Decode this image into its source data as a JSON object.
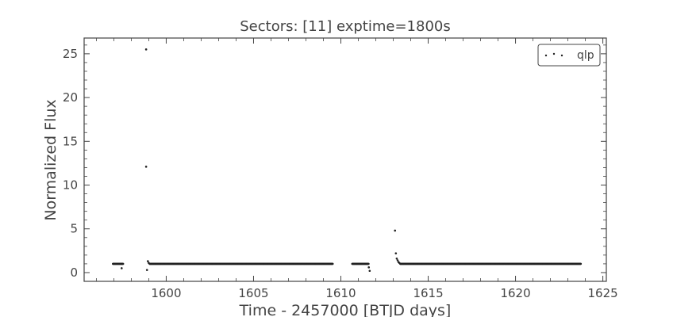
{
  "chart_data": {
    "type": "scatter",
    "title": "Sectors: [11] exptime=1800s",
    "xlabel": "Time - 2457000 [BTJD days]",
    "ylabel": "Normalized Flux",
    "xlim": [
      1595.3,
      1625.2
    ],
    "ylim": [
      -1.0,
      26.8
    ],
    "xticks": [
      1600,
      1605,
      1610,
      1615,
      1620,
      1625
    ],
    "xtick_labels": [
      "1600",
      "1605",
      "1610",
      "1615",
      "1620",
      "1625"
    ],
    "yticks": [
      0,
      5,
      10,
      15,
      20,
      25
    ],
    "ytick_labels": [
      "0",
      "5",
      "10",
      "15",
      "20",
      "25"
    ],
    "grid": false,
    "legend": {
      "position": "top-right",
      "entries": [
        "qlp"
      ]
    },
    "series": [
      {
        "name": "qlp",
        "color": "#222222",
        "segments": [
          {
            "start": 1596.95,
            "end": 1597.55,
            "step": 0.0208,
            "y": 1.0
          },
          {
            "start": 1599.05,
            "end": 1609.55,
            "step": 0.0208,
            "y": 1.0
          },
          {
            "start": 1610.65,
            "end": 1611.6,
            "step": 0.0208,
            "y": 1.0
          },
          {
            "start": 1613.4,
            "end": 1623.75,
            "step": 0.0208,
            "y": 1.0
          }
        ],
        "extra_points": [
          {
            "x": 1597.45,
            "y": 0.5
          },
          {
            "x": 1598.85,
            "y": 25.5
          },
          {
            "x": 1598.85,
            "y": 12.1
          },
          {
            "x": 1598.9,
            "y": 0.3
          },
          {
            "x": 1598.95,
            "y": 1.3
          },
          {
            "x": 1599.0,
            "y": 1.1
          },
          {
            "x": 1611.6,
            "y": 0.6
          },
          {
            "x": 1611.65,
            "y": 0.2
          },
          {
            "x": 1613.1,
            "y": 4.8
          },
          {
            "x": 1613.15,
            "y": 2.2
          },
          {
            "x": 1613.2,
            "y": 1.6
          },
          {
            "x": 1613.25,
            "y": 1.4
          },
          {
            "x": 1613.3,
            "y": 1.2
          },
          {
            "x": 1613.35,
            "y": 1.1
          }
        ]
      }
    ]
  }
}
